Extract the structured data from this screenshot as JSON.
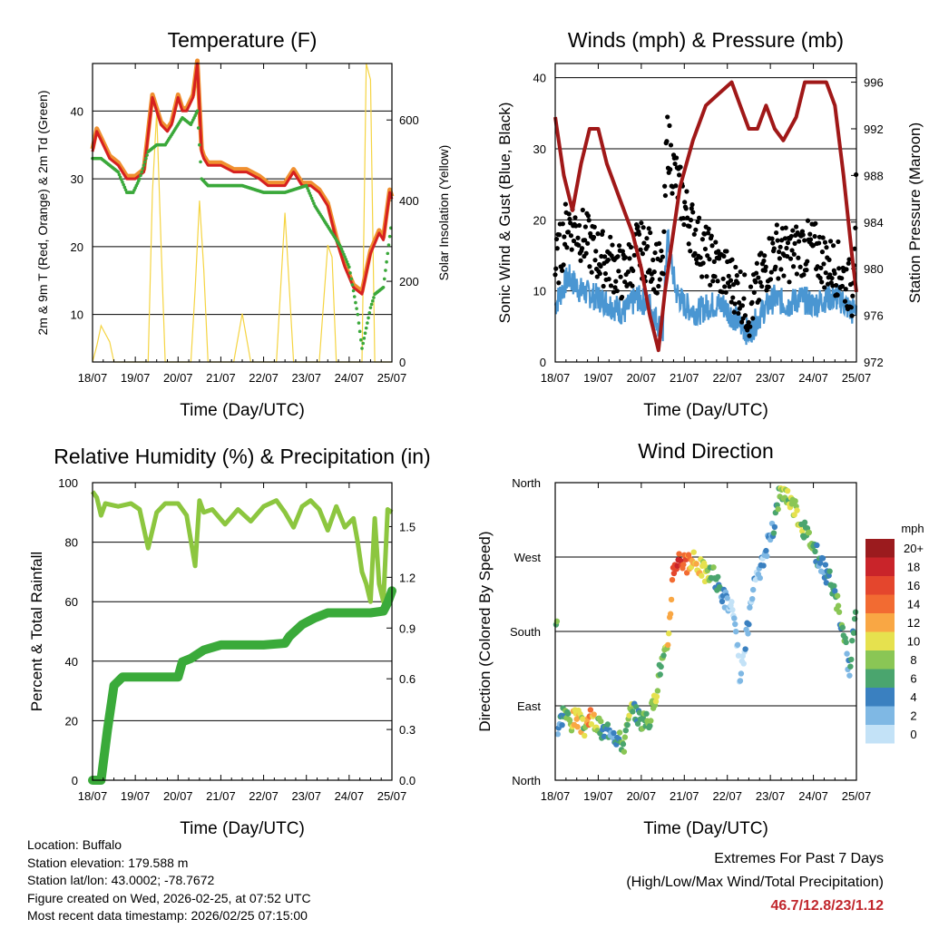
{
  "chart_data": [
    {
      "type": "line",
      "title": "Temperature (F)",
      "xlabel": "Time (Day/UTC)",
      "ylabel": "2m & 9m T (Red, Orange) & 2m Td (Green)",
      "y2label": "Solar Insolation (Yellow)",
      "xticks": [
        "18/07",
        "19/07",
        "20/07",
        "21/07",
        "22/07",
        "23/07",
        "24/07",
        "25/07"
      ],
      "ylim": [
        3,
        47
      ],
      "yticks": [
        10,
        20,
        30,
        40
      ],
      "y2lim": [
        0,
        740
      ],
      "y2ticks": [
        0,
        200,
        400,
        600
      ],
      "colors": {
        "t2m": "#d62020",
        "t9m": "#f09030",
        "td": "#3aa83a",
        "solar": "#f5d442"
      },
      "series": [
        {
          "name": "2m T",
          "x": [
            0,
            0.1,
            0.25,
            0.4,
            0.6,
            0.8,
            1.0,
            1.2,
            1.4,
            1.6,
            1.75,
            1.85,
            2.0,
            2.1,
            2.2,
            2.35,
            2.45,
            2.55,
            2.6,
            2.7,
            3.0,
            3.3,
            3.6,
            3.9,
            4.1,
            4.3,
            4.5,
            4.7,
            4.9,
            5.1,
            5.3,
            5.5,
            5.7,
            5.9,
            6.1,
            6.3,
            6.5,
            6.7,
            6.8,
            6.95,
            7.0
          ],
          "values": [
            34,
            37,
            35,
            33,
            32,
            30,
            30,
            31,
            42,
            38,
            37,
            38,
            42,
            40,
            40,
            42,
            47,
            34,
            33,
            32,
            32,
            31,
            31,
            30,
            29,
            29,
            29,
            31,
            29,
            29,
            28,
            26,
            21,
            17,
            14,
            13,
            19,
            22,
            21,
            28,
            27
          ]
        },
        {
          "name": "2m Td",
          "x": [
            0,
            0.2,
            0.4,
            0.6,
            0.8,
            0.95,
            1.1,
            1.3,
            1.5,
            1.7,
            1.9,
            2.1,
            2.3,
            2.45,
            2.55,
            2.7,
            3.0,
            3.5,
            4.0,
            4.5,
            5.0,
            5.2,
            5.4,
            5.6,
            5.8,
            6.0,
            6.2,
            6.3,
            6.5,
            6.6,
            6.8,
            7.0
          ],
          "values": [
            33,
            33,
            32,
            31,
            28,
            28,
            30,
            34,
            35,
            35,
            37,
            39,
            38,
            40,
            30,
            29,
            29,
            29,
            28,
            28,
            29,
            26,
            24,
            22,
            20,
            17,
            10,
            5,
            11,
            13,
            14,
            24
          ]
        },
        {
          "name": "Solar",
          "x": [
            0,
            0.1,
            0.2,
            0.3,
            0.4,
            0.5,
            0.7,
            1.0,
            1.3,
            1.4,
            1.5,
            1.6,
            1.7,
            2.0,
            2.3,
            2.4,
            2.5,
            2.6,
            2.7,
            3.0,
            3.3,
            3.5,
            3.7,
            4.0,
            4.3,
            4.5,
            4.7,
            5.0,
            5.3,
            5.5,
            5.6,
            5.7,
            6.0,
            6.3,
            6.4,
            6.5,
            6.6,
            6.7,
            6.8,
            7.0
          ],
          "values": [
            0,
            40,
            90,
            70,
            50,
            0,
            0,
            0,
            0,
            420,
            620,
            300,
            0,
            0,
            0,
            180,
            400,
            230,
            0,
            0,
            0,
            120,
            0,
            0,
            0,
            370,
            0,
            0,
            0,
            290,
            260,
            0,
            0,
            0,
            740,
            700,
            0,
            0,
            0,
            0
          ]
        }
      ]
    },
    {
      "type": "line",
      "title": "Winds (mph) & Pressure (mb)",
      "xlabel": "Time (Day/UTC)",
      "ylabel": "Sonic Wind & Gust (Blue, Black)",
      "y2label": "Station Pressure (Maroon)",
      "xticks": [
        "18/07",
        "19/07",
        "20/07",
        "21/07",
        "22/07",
        "23/07",
        "24/07",
        "25/07"
      ],
      "ylim": [
        0,
        42
      ],
      "yticks": [
        0,
        10,
        20,
        30,
        40
      ],
      "y2lim": [
        972,
        997.6
      ],
      "y2ticks": [
        972,
        976,
        980,
        984,
        988,
        992,
        996
      ],
      "colors": {
        "wind": "#4a96d2",
        "gust": "#000000",
        "pressure": "#a01818"
      },
      "series": [
        {
          "name": "Sonic Wind",
          "x": [
            0,
            0.3,
            0.6,
            1.0,
            1.3,
            1.6,
            1.9,
            2.2,
            2.5,
            2.6,
            2.8,
            3.0,
            3.3,
            3.6,
            3.9,
            4.2,
            4.5,
            4.8,
            5.1,
            5.4,
            5.7,
            6.0,
            6.3,
            6.6,
            6.9,
            7.0
          ],
          "values": [
            8,
            12,
            10,
            9,
            8,
            7,
            9,
            8,
            4,
            18,
            10,
            8,
            7,
            8,
            8,
            6,
            4,
            7,
            9,
            8,
            9,
            8,
            9,
            9,
            7,
            8
          ]
        },
        {
          "name": "Gust",
          "x": [
            0,
            0.3,
            0.6,
            1.0,
            1.3,
            1.6,
            1.9,
            2.2,
            2.5,
            2.6,
            2.7,
            2.9,
            3.1,
            3.4,
            3.7,
            4.0,
            4.3,
            4.5,
            4.8,
            5.1,
            5.4,
            5.7,
            6.0,
            6.3,
            6.6,
            6.9,
            7.0
          ],
          "values": [
            13,
            20,
            18,
            15,
            14,
            12,
            16,
            15,
            12,
            32,
            28,
            24,
            20,
            16,
            14,
            12,
            10,
            7,
            12,
            16,
            15,
            16,
            16,
            14,
            13,
            10,
            24
          ]
        },
        {
          "name": "Pressure",
          "x": [
            0,
            0.2,
            0.4,
            0.6,
            0.8,
            1.0,
            1.2,
            1.5,
            1.8,
            2.0,
            2.2,
            2.4,
            2.55,
            2.7,
            2.9,
            3.2,
            3.5,
            3.8,
            4.1,
            4.3,
            4.5,
            4.7,
            4.9,
            5.1,
            5.3,
            5.6,
            5.8,
            6.0,
            6.3,
            6.5,
            6.7,
            6.9,
            7.0
          ],
          "values": [
            993,
            988,
            985,
            989,
            992,
            992,
            989,
            986,
            983,
            980,
            976,
            973,
            978,
            982,
            987,
            991,
            994,
            995,
            996,
            994,
            992,
            992,
            994,
            992,
            991,
            993,
            996,
            996,
            996,
            994,
            988,
            981,
            978
          ]
        }
      ]
    },
    {
      "type": "line",
      "title": "Relative Humidity (%) & Precipitation (in)",
      "xlabel": "Time (Day/UTC)",
      "ylabel": "Percent & Total Rainfall",
      "xticks": [
        "18/07",
        "19/07",
        "20/07",
        "21/07",
        "22/07",
        "23/07",
        "24/07",
        "25/07"
      ],
      "ylim": [
        0,
        100
      ],
      "yticks": [
        0,
        20,
        40,
        60,
        80,
        100
      ],
      "y2lim": [
        0,
        1.76
      ],
      "y2ticks": [
        "0.0",
        "0.3",
        "0.6",
        "0.9",
        "1.2",
        "1.5"
      ],
      "colors": {
        "rh": "#8cc63f",
        "precip": "#3aaa3a"
      },
      "series": [
        {
          "name": "RH",
          "x": [
            0,
            0.1,
            0.2,
            0.3,
            0.6,
            0.9,
            1.1,
            1.3,
            1.5,
            1.7,
            2.0,
            2.2,
            2.4,
            2.5,
            2.6,
            2.8,
            3.1,
            3.4,
            3.7,
            4.0,
            4.3,
            4.5,
            4.7,
            4.9,
            5.1,
            5.3,
            5.5,
            5.7,
            5.9,
            6.1,
            6.2,
            6.3,
            6.4,
            6.5,
            6.6,
            6.7,
            6.8,
            6.9,
            7.0
          ],
          "values": [
            97,
            95,
            89,
            93,
            92,
            93,
            91,
            78,
            90,
            93,
            93,
            89,
            72,
            94,
            90,
            91,
            86,
            91,
            87,
            92,
            94,
            90,
            85,
            92,
            94,
            91,
            84,
            92,
            85,
            88,
            80,
            70,
            66,
            60,
            88,
            66,
            60,
            91,
            90
          ]
        },
        {
          "name": "Total Precip",
          "x": [
            0,
            0.2,
            0.35,
            0.5,
            0.7,
            1.0,
            1.5,
            2.0,
            2.1,
            2.3,
            2.6,
            3.0,
            3.5,
            4.0,
            4.5,
            4.6,
            4.9,
            5.2,
            5.5,
            6.0,
            6.5,
            6.8,
            6.9,
            7.0
          ],
          "values": [
            0,
            0,
            0.3,
            0.56,
            0.61,
            0.61,
            0.61,
            0.61,
            0.7,
            0.72,
            0.77,
            0.8,
            0.8,
            0.8,
            0.81,
            0.85,
            0.92,
            0.96,
            0.99,
            0.99,
            0.99,
            1.0,
            1.05,
            1.12
          ]
        }
      ]
    },
    {
      "type": "scatter",
      "title": "Wind Direction",
      "xlabel": "Time (Day/UTC)",
      "ylabel": "Direction (Colored By Speed)",
      "xticks": [
        "18/07",
        "19/07",
        "20/07",
        "21/07",
        "22/07",
        "23/07",
        "24/07",
        "25/07"
      ],
      "yticks": [
        "North",
        "East",
        "South",
        "West",
        "North"
      ],
      "ylim": [
        0,
        360
      ],
      "colorbar": {
        "label": "mph",
        "levels": [
          "20+",
          "18",
          "16",
          "14",
          "12",
          "10",
          "8",
          "6",
          "4",
          "2",
          "0"
        ],
        "colors": [
          "#9b1b1e",
          "#c9242a",
          "#e4462d",
          "#f26b32",
          "#f9a744",
          "#e6e14e",
          "#8ac655",
          "#4aa56e",
          "#3a80c0",
          "#7fb8e4",
          "#c3e2f7"
        ]
      },
      "series": [
        {
          "name": "Direction",
          "x": [
            0.05,
            0.2,
            0.35,
            0.5,
            0.65,
            0.8,
            0.95,
            1.1,
            1.3,
            1.45,
            1.6,
            1.75,
            1.9,
            2.05,
            2.2,
            2.3,
            2.45,
            2.6,
            2.75,
            2.9,
            3.05,
            3.2,
            3.35,
            3.5,
            3.65,
            3.8,
            3.95,
            4.1,
            4.2,
            4.3,
            4.45,
            4.6,
            4.75,
            4.9,
            5.05,
            5.2,
            5.35,
            5.5,
            5.65,
            5.8,
            5.95,
            6.1,
            6.25,
            6.4,
            6.55,
            6.7,
            6.85,
            6.95
          ],
          "y": [
            60,
            85,
            70,
            78,
            62,
            75,
            70,
            58,
            65,
            50,
            45,
            82,
            80,
            70,
            75,
            95,
            140,
            155,
            260,
            270,
            260,
            265,
            260,
            250,
            250,
            235,
            220,
            205,
            175,
            120,
            175,
            230,
            250,
            280,
            300,
            345,
            350,
            335,
            320,
            300,
            290,
            270,
            255,
            240,
            215,
            175,
            130,
            195
          ],
          "speed": [
            3,
            6,
            10,
            13,
            9,
            14,
            10,
            6,
            4,
            7,
            8,
            9,
            6,
            8,
            9,
            10,
            8,
            10,
            16,
            18,
            14,
            13,
            12,
            10,
            8,
            6,
            4,
            2,
            2,
            1,
            3,
            2,
            3,
            4,
            4,
            8,
            9,
            10,
            10,
            8,
            8,
            6,
            4,
            6,
            8,
            7,
            4,
            8
          ]
        }
      ]
    }
  ],
  "info": {
    "location": "Location: Buffalo",
    "elevation": "Station elevation: 179.588 m",
    "latlon": "Station lat/lon: 43.0002; -78.7672",
    "created": "Figure created on Wed, 2026-02-25, at 07:52 UTC",
    "recent": "Most recent data timestamp: 2026/02/25 07:15:00"
  },
  "extremes": {
    "heading": "Extremes For Past 7 Days",
    "subheading": "(High/Low/Max Wind/Total Precipitation)",
    "values": "46.7/12.8/23/1.12"
  }
}
